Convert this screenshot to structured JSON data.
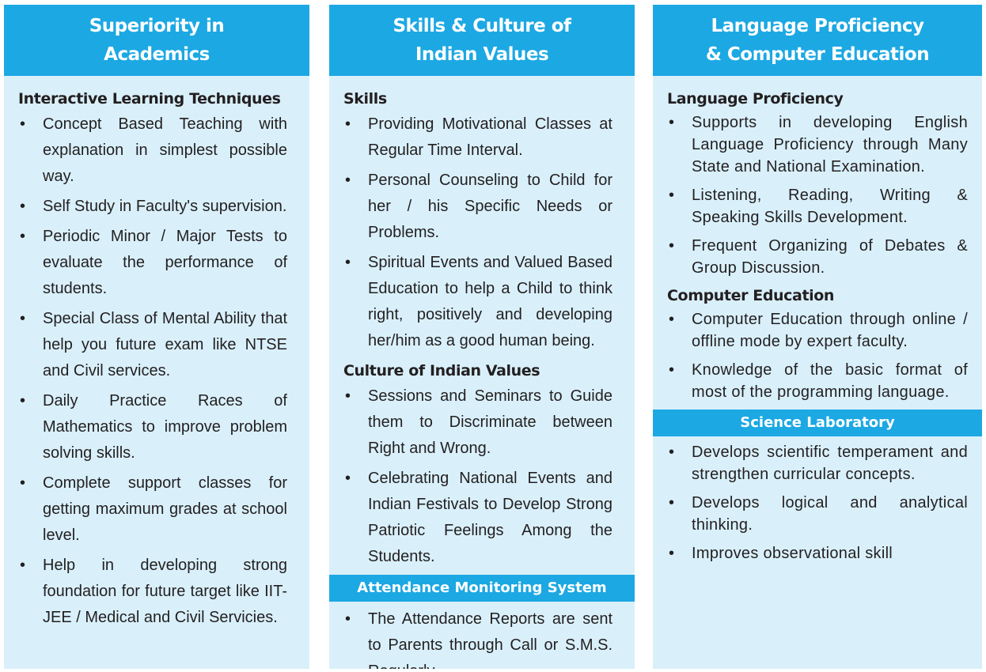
{
  "columns": [
    {
      "title_line1": "Superiority in",
      "title_line2": "Academics",
      "section_heading": "Interactive Learning Techniques",
      "items": [
        "Concept Based Teaching with explanation in simplest possible way.",
        "Self Study in Faculty's supervision.",
        "Periodic Minor / Major Tests to evaluate the performance of students.",
        "Special Class of Mental Ability that help you future exam like NTSE and Civil services.",
        "Daily Practice Races of Mathematics to improve problem solving skills.",
        "Complete support classes for getting maximum grades at school level.",
        "Help in developing strong foundation for future target like IIT-JEE / Medical and Civil Servicies."
      ]
    },
    {
      "title_line1": "Skills & Culture of",
      "title_line2": "Indian Values",
      "skills_heading": "Skills",
      "skills_items": [
        "Providing Motivational Classes at Regular Time Interval.",
        "Personal Counseling to Child for her / his Specific Needs or Problems.",
        "Spiritual Events and Valued Based Education to help a Child to think right, positively and developing her/him as a good human being."
      ],
      "culture_heading": "Culture of Indian Values",
      "culture_items": [
        "Sessions and Seminars to Guide them to Discriminate between Right and Wrong.",
        "Celebrating National Events and Indian Festivals to Develop Strong Patriotic Feelings Among the Students."
      ],
      "band_title": "Attendance Monitoring System",
      "attendance_items": [
        "The Attendance Reports are sent to Parents through Call or S.M.S. Regularly."
      ]
    },
    {
      "title_line1": "Language Proficiency",
      "title_line2": "& Computer Education",
      "language_heading": "Language Proficiency",
      "language_items": [
        "Supports in developing English Language Proficiency through Many State and National Examination.",
        "Listening, Reading, Writing & Speaking Skills Development.",
        "Frequent Organizing of Debates & Group Discussion."
      ],
      "computer_heading": "Computer Education",
      "computer_items": [
        "Computer Education through online / offline mode by expert faculty.",
        "Knowledge of the basic format of most of the programming language."
      ],
      "band_title": "Science Laboratory",
      "science_items": [
        "Develops scientific temperament and strengthen curricular concepts.",
        "Develops logical and analytical thinking.",
        "Improves observational skill"
      ]
    }
  ],
  "bullet_symbol": "•",
  "colors": {
    "header_blue": "#1ca8e3",
    "panel_bg": "#d9f0fb",
    "text": "#231f20"
  }
}
